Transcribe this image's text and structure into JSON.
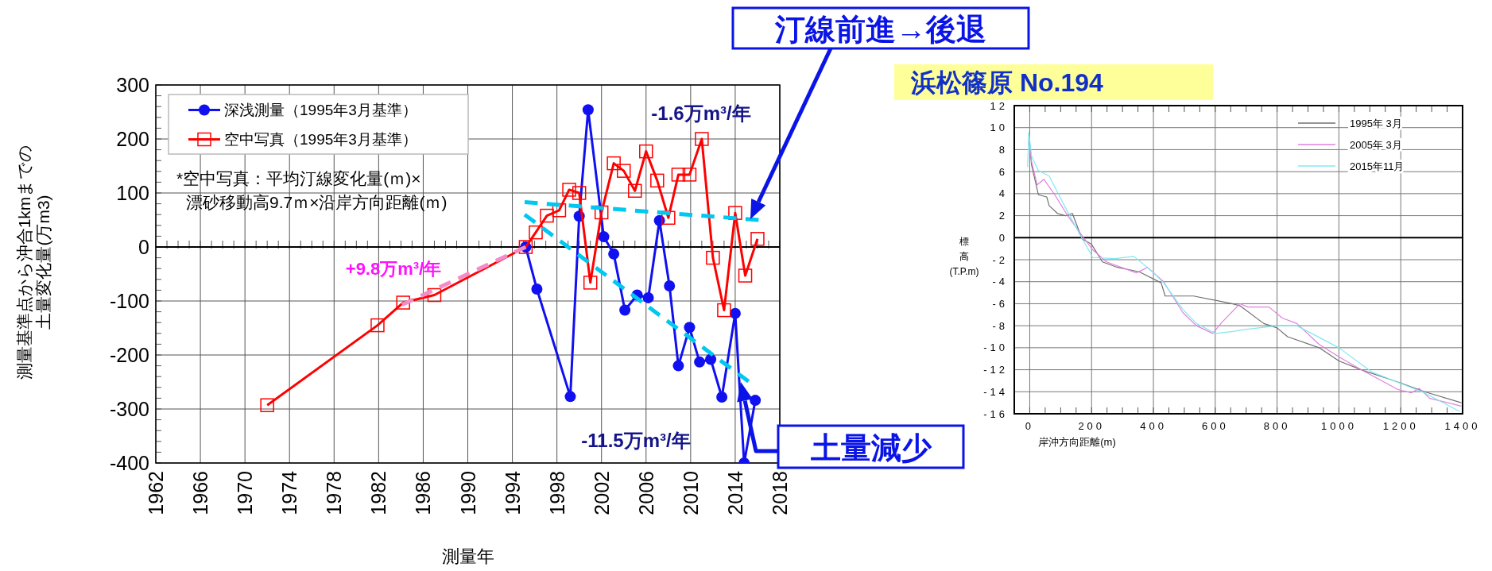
{
  "chart_data": [
    {
      "type": "line",
      "xlabel": "測量年",
      "ylabel": "測量基準点から沖合1kmまでの土量変化量(万m3)",
      "xlim": [
        1962,
        2018
      ],
      "xticks": [
        1962,
        1966,
        1970,
        1974,
        1978,
        1982,
        1986,
        1990,
        1994,
        1998,
        2002,
        2006,
        2010,
        2014,
        2018
      ],
      "ylim": [
        -400,
        300
      ],
      "yticks": [
        -400,
        -300,
        -200,
        -100,
        0,
        100,
        200,
        300
      ],
      "grid": true,
      "legend": "top left",
      "ref_lines": [
        {
          "axis": "y",
          "value": 0
        }
      ],
      "series": [
        {
          "name": "深浅測量（1995年3月基準）",
          "color": "#1010f0",
          "marker": "circle",
          "x": [
            1995.2,
            1996.2,
            1999.2,
            2000.0,
            2000.8,
            2002.2,
            2003.1,
            2004.1,
            2005.2,
            2006.2,
            2007.2,
            2008.1,
            2008.9,
            2009.9,
            2010.8,
            2011.8,
            2012.8,
            2014.0,
            2014.8,
            2015.8
          ],
          "values": [
            0,
            -78,
            -277,
            57,
            254,
            19,
            -13,
            -117,
            -89,
            -94,
            49,
            -72,
            -220,
            -149,
            -213,
            -208,
            -278,
            -123,
            -400,
            -284
          ]
        },
        {
          "name": "空中写真（1995年3月基準）",
          "color": "#ff0000",
          "marker": "square",
          "x": [
            1972.0,
            1981.9,
            1984.2,
            1987.0,
            1995.2,
            1996.1,
            1997.1,
            1998.2,
            1999.1,
            2000.0,
            2001.0,
            2002.0,
            2003.1,
            2004.0,
            2005.0,
            2006.0,
            2007.0,
            2008.0,
            2008.9,
            2009.9,
            2011.0,
            2012.0,
            2013.0,
            2014.0,
            2014.9,
            2016.0
          ],
          "values": [
            -293,
            -145,
            -103,
            -89,
            0,
            27,
            58,
            68,
            106,
            100,
            -66,
            64,
            155,
            141,
            104,
            177,
            123,
            54,
            134,
            134,
            200,
            -20,
            -117,
            63,
            -53,
            15
          ]
        },
        {
          "color": "#f48cc8",
          "marker": "none",
          "line_style": "dashed",
          "x": [
            1984.1,
            1995.2
          ],
          "values": [
            -107,
            0
          ]
        },
        {
          "color": "#00c8f0",
          "marker": "none",
          "line_style": "dashed",
          "x": [
            1995.1,
            2016.1
          ],
          "values": [
            83,
            50
          ]
        },
        {
          "color": "#00c8f0",
          "marker": "none",
          "line_style": "dashed",
          "x": [
            1995.1,
            2015.2
          ],
          "values": [
            60,
            -249
          ]
        }
      ],
      "annotations": [
        "*空中写真：平均汀線変化量(ｍ)×\n漂砂移動高9.7ｍ×沿岸方向距離(ｍ)",
        "+9.8万m³/年",
        "-1.6万m³/年",
        "-11.5万m³/年",
        "汀線前進→後退",
        {
          "text": "土量減少",
          "x": 2014.5,
          "y": -250
        }
      ]
    },
    {
      "type": "line",
      "title": "浜松篠原 No.194",
      "xlabel": "岸沖方向距離(m)",
      "ylabel": "標高(T.P.m)",
      "xlim": [
        -50,
        1400
      ],
      "xticks": [
        0,
        200,
        400,
        600,
        800,
        1000,
        1200,
        1400
      ],
      "ylim": [
        -16,
        12
      ],
      "yticks": [
        -16,
        -14,
        -12,
        -10,
        -8,
        -6,
        -4,
        -2,
        0,
        2,
        4,
        6,
        8,
        10,
        12
      ],
      "grid": true,
      "legend": "top right",
      "marker": "none",
      "ref_lines": [
        {
          "axis": "y",
          "value": 0
        }
      ],
      "series": [
        {
          "name": "1995年 3月",
          "color": "#707070",
          "x": [
            -3,
            6,
            28,
            55,
            63,
            90,
            116,
            138,
            169,
            200,
            235,
            284,
            354,
            425,
            438,
            530,
            654,
            681,
            757,
            800,
            834,
            936,
            1000,
            1072,
            1200,
            1277,
            1396
          ],
          "values": [
            9.4,
            6.6,
            3.9,
            3.7,
            2.9,
            2.2,
            2.0,
            2.2,
            -0.1,
            -0.6,
            -2.2,
            -2.7,
            -3.1,
            -4.1,
            -5.3,
            -5.3,
            -6.0,
            -6.2,
            -7.8,
            -8.2,
            -9.0,
            -10.0,
            -11.2,
            -12.0,
            -13.2,
            -14.0,
            -15.0
          ]
        },
        {
          "name": "2005年 3月",
          "color": "#e080e0",
          "x": [
            -3,
            6,
            24,
            46,
            81,
            125,
            169,
            204,
            248,
            345,
            381,
            433,
            495,
            539,
            592,
            618,
            680,
            706,
            774,
            817,
            864,
            936,
            1004,
            1072,
            1191,
            1234,
            1260,
            1294,
            1396
          ],
          "values": [
            8.9,
            6.9,
            4.8,
            5.3,
            3.9,
            1.9,
            0.2,
            -1.1,
            -2.2,
            -3.2,
            -2.7,
            -4.0,
            -6.8,
            -8.0,
            -8.7,
            -7.8,
            -6.0,
            -6.3,
            -6.3,
            -7.3,
            -7.8,
            -9.7,
            -10.9,
            -12.0,
            -13.8,
            -14.1,
            -13.7,
            -14.6,
            -15.3
          ]
        },
        {
          "name": "2015年11月",
          "color": "#80e8f0",
          "x": [
            -7,
            -3,
            6,
            28,
            63,
            116,
            160,
            204,
            275,
            337,
            398,
            433,
            495,
            539,
            601,
            663,
            681,
            800,
            864,
            1000,
            1106,
            1277,
            1391
          ],
          "values": [
            6.4,
            9.6,
            7.4,
            6.1,
            5.6,
            2.7,
            0.4,
            -1.8,
            -1.9,
            -1.7,
            -3.1,
            -4.1,
            -6.5,
            -7.8,
            -8.7,
            -8.5,
            -8.4,
            -8.0,
            -8.0,
            -10.0,
            -12.2,
            -14.1,
            -15.8
          ]
        }
      ]
    }
  ]
}
